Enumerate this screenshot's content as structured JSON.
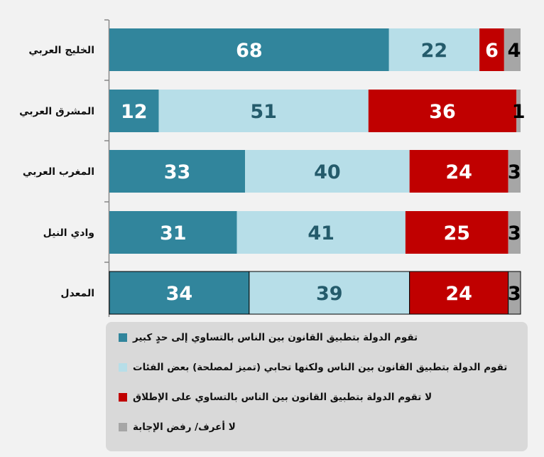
{
  "chart_data": {
    "type": "bar",
    "orientation": "horizontal",
    "stacked": true,
    "categories": [
      "الخليج العربي",
      "المشرق العربي",
      "المغرب العربي",
      "وادي النيل",
      "المعدل"
    ],
    "series": [
      {
        "name": "تقوم الدولة بتطبيق القانون بين الناس بالتساوي إلى حدٍ كبير",
        "color": "#31859c",
        "label_color": "#ffffff",
        "values": [
          68,
          12,
          33,
          31,
          34
        ]
      },
      {
        "name": "تقوم الدولة بتطبيق القانون بين الناس ولكنها تحابي (تميز لمصلحة) بعض الفئات",
        "color": "#b7dee8",
        "label_color": "#245b6b",
        "values": [
          22,
          51,
          40,
          41,
          39
        ]
      },
      {
        "name": "لا تقوم الدولة بتطبيق القانون بين الناس بالتساوي على الإطلاق",
        "color": "#c00000",
        "label_color": "#ffffff",
        "values": [
          6,
          36,
          24,
          25,
          24
        ]
      },
      {
        "name": "لا أعرف/ رفض الإجابة",
        "color": "#a6a6a6",
        "label_color": "#000000",
        "values": [
          4,
          1,
          3,
          3,
          3
        ]
      }
    ],
    "xlim": [
      0,
      100
    ],
    "title": "",
    "xlabel": "",
    "ylabel": "",
    "grid": false,
    "legend_position": "bottom"
  }
}
